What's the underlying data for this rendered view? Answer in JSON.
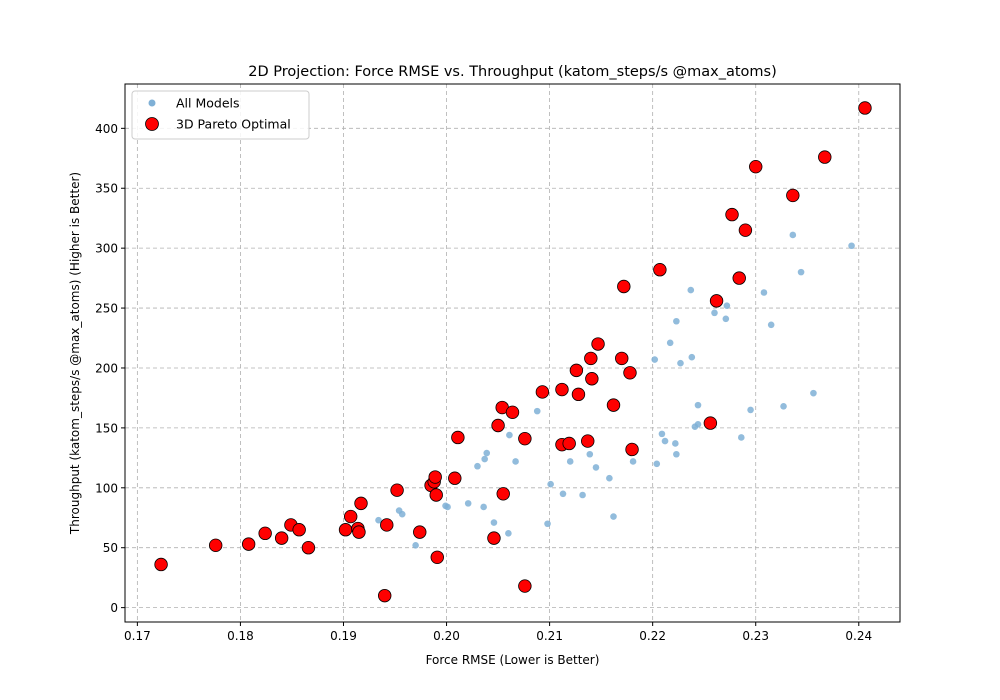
{
  "chart_data": {
    "type": "scatter",
    "title": "2D Projection: Force RMSE vs. Throughput (katom_steps/s @max_atoms)",
    "xlabel": "Force RMSE (Lower is Better)",
    "ylabel": "Throughput (katom_steps/s @max_atoms) (Higher is Better)",
    "xlim": [
      0.1688,
      0.244
    ],
    "ylim": [
      -12,
      437
    ],
    "xticks": [
      "0.17",
      "0.18",
      "0.19",
      "0.20",
      "0.21",
      "0.22",
      "0.23",
      "0.24"
    ],
    "yticks": [
      "0",
      "50",
      "100",
      "150",
      "200",
      "250",
      "300",
      "350",
      "400"
    ],
    "grid": true,
    "legend_position": "upper-left",
    "series": [
      {
        "name": "All Models",
        "color": "#7fb0d6",
        "points": [
          [
            0.1934,
            73
          ],
          [
            0.1954,
            81
          ],
          [
            0.1957,
            78
          ],
          [
            0.197,
            52
          ],
          [
            0.1999,
            85
          ],
          [
            0.2001,
            84
          ],
          [
            0.2021,
            87
          ],
          [
            0.203,
            118
          ],
          [
            0.2037,
            124
          ],
          [
            0.2039,
            129
          ],
          [
            0.2036,
            84
          ],
          [
            0.2046,
            71
          ],
          [
            0.206,
            62
          ],
          [
            0.2061,
            144
          ],
          [
            0.2067,
            122
          ],
          [
            0.2088,
            164
          ],
          [
            0.2098,
            70
          ],
          [
            0.2101,
            103
          ],
          [
            0.2113,
            95
          ],
          [
            0.212,
            122
          ],
          [
            0.2132,
            94
          ],
          [
            0.2139,
            128
          ],
          [
            0.2145,
            117
          ],
          [
            0.2158,
            108
          ],
          [
            0.2162,
            76
          ],
          [
            0.2181,
            122
          ],
          [
            0.2202,
            207
          ],
          [
            0.2204,
            120
          ],
          [
            0.2209,
            145
          ],
          [
            0.2212,
            139
          ],
          [
            0.2217,
            221
          ],
          [
            0.2222,
            137
          ],
          [
            0.2223,
            128
          ],
          [
            0.2223,
            239
          ],
          [
            0.2227,
            204
          ],
          [
            0.2237,
            265
          ],
          [
            0.2238,
            209
          ],
          [
            0.2241,
            151
          ],
          [
            0.2244,
            169
          ],
          [
            0.2244,
            153
          ],
          [
            0.226,
            246
          ],
          [
            0.2271,
            241
          ],
          [
            0.2272,
            252
          ],
          [
            0.2286,
            142
          ],
          [
            0.2295,
            165
          ],
          [
            0.2308,
            263
          ],
          [
            0.2315,
            236
          ],
          [
            0.2327,
            168
          ],
          [
            0.2336,
            311
          ],
          [
            0.2344,
            280
          ],
          [
            0.2356,
            179
          ],
          [
            0.2393,
            302
          ]
        ]
      },
      {
        "name": "3D Pareto Optimal",
        "color": "#ff0000",
        "points": [
          [
            0.1723,
            36
          ],
          [
            0.1776,
            52
          ],
          [
            0.1808,
            53
          ],
          [
            0.1824,
            62
          ],
          [
            0.184,
            58
          ],
          [
            0.1849,
            69
          ],
          [
            0.1857,
            65
          ],
          [
            0.1866,
            50
          ],
          [
            0.1902,
            65
          ],
          [
            0.1907,
            76
          ],
          [
            0.1914,
            66
          ],
          [
            0.1915,
            63
          ],
          [
            0.1917,
            87
          ],
          [
            0.194,
            10
          ],
          [
            0.1942,
            69
          ],
          [
            0.1952,
            98
          ],
          [
            0.1974,
            63
          ],
          [
            0.1985,
            102
          ],
          [
            0.1988,
            105
          ],
          [
            0.1989,
            109
          ],
          [
            0.199,
            94
          ],
          [
            0.1991,
            42
          ],
          [
            0.2008,
            108
          ],
          [
            0.2011,
            142
          ],
          [
            0.2046,
            58
          ],
          [
            0.205,
            152
          ],
          [
            0.2054,
            167
          ],
          [
            0.2055,
            95
          ],
          [
            0.2064,
            163
          ],
          [
            0.2076,
            18
          ],
          [
            0.2076,
            141
          ],
          [
            0.2093,
            180
          ],
          [
            0.2112,
            136
          ],
          [
            0.2112,
            182
          ],
          [
            0.2119,
            137
          ],
          [
            0.2126,
            198
          ],
          [
            0.2128,
            178
          ],
          [
            0.2137,
            139
          ],
          [
            0.214,
            208
          ],
          [
            0.2141,
            191
          ],
          [
            0.2147,
            220
          ],
          [
            0.2162,
            169
          ],
          [
            0.217,
            208
          ],
          [
            0.2172,
            268
          ],
          [
            0.2178,
            196
          ],
          [
            0.218,
            132
          ],
          [
            0.2207,
            282
          ],
          [
            0.2256,
            154
          ],
          [
            0.2262,
            256
          ],
          [
            0.2277,
            328
          ],
          [
            0.2284,
            275
          ],
          [
            0.229,
            315
          ],
          [
            0.23,
            368
          ],
          [
            0.2336,
            344
          ],
          [
            0.2367,
            376
          ],
          [
            0.2406,
            417
          ]
        ]
      }
    ]
  }
}
